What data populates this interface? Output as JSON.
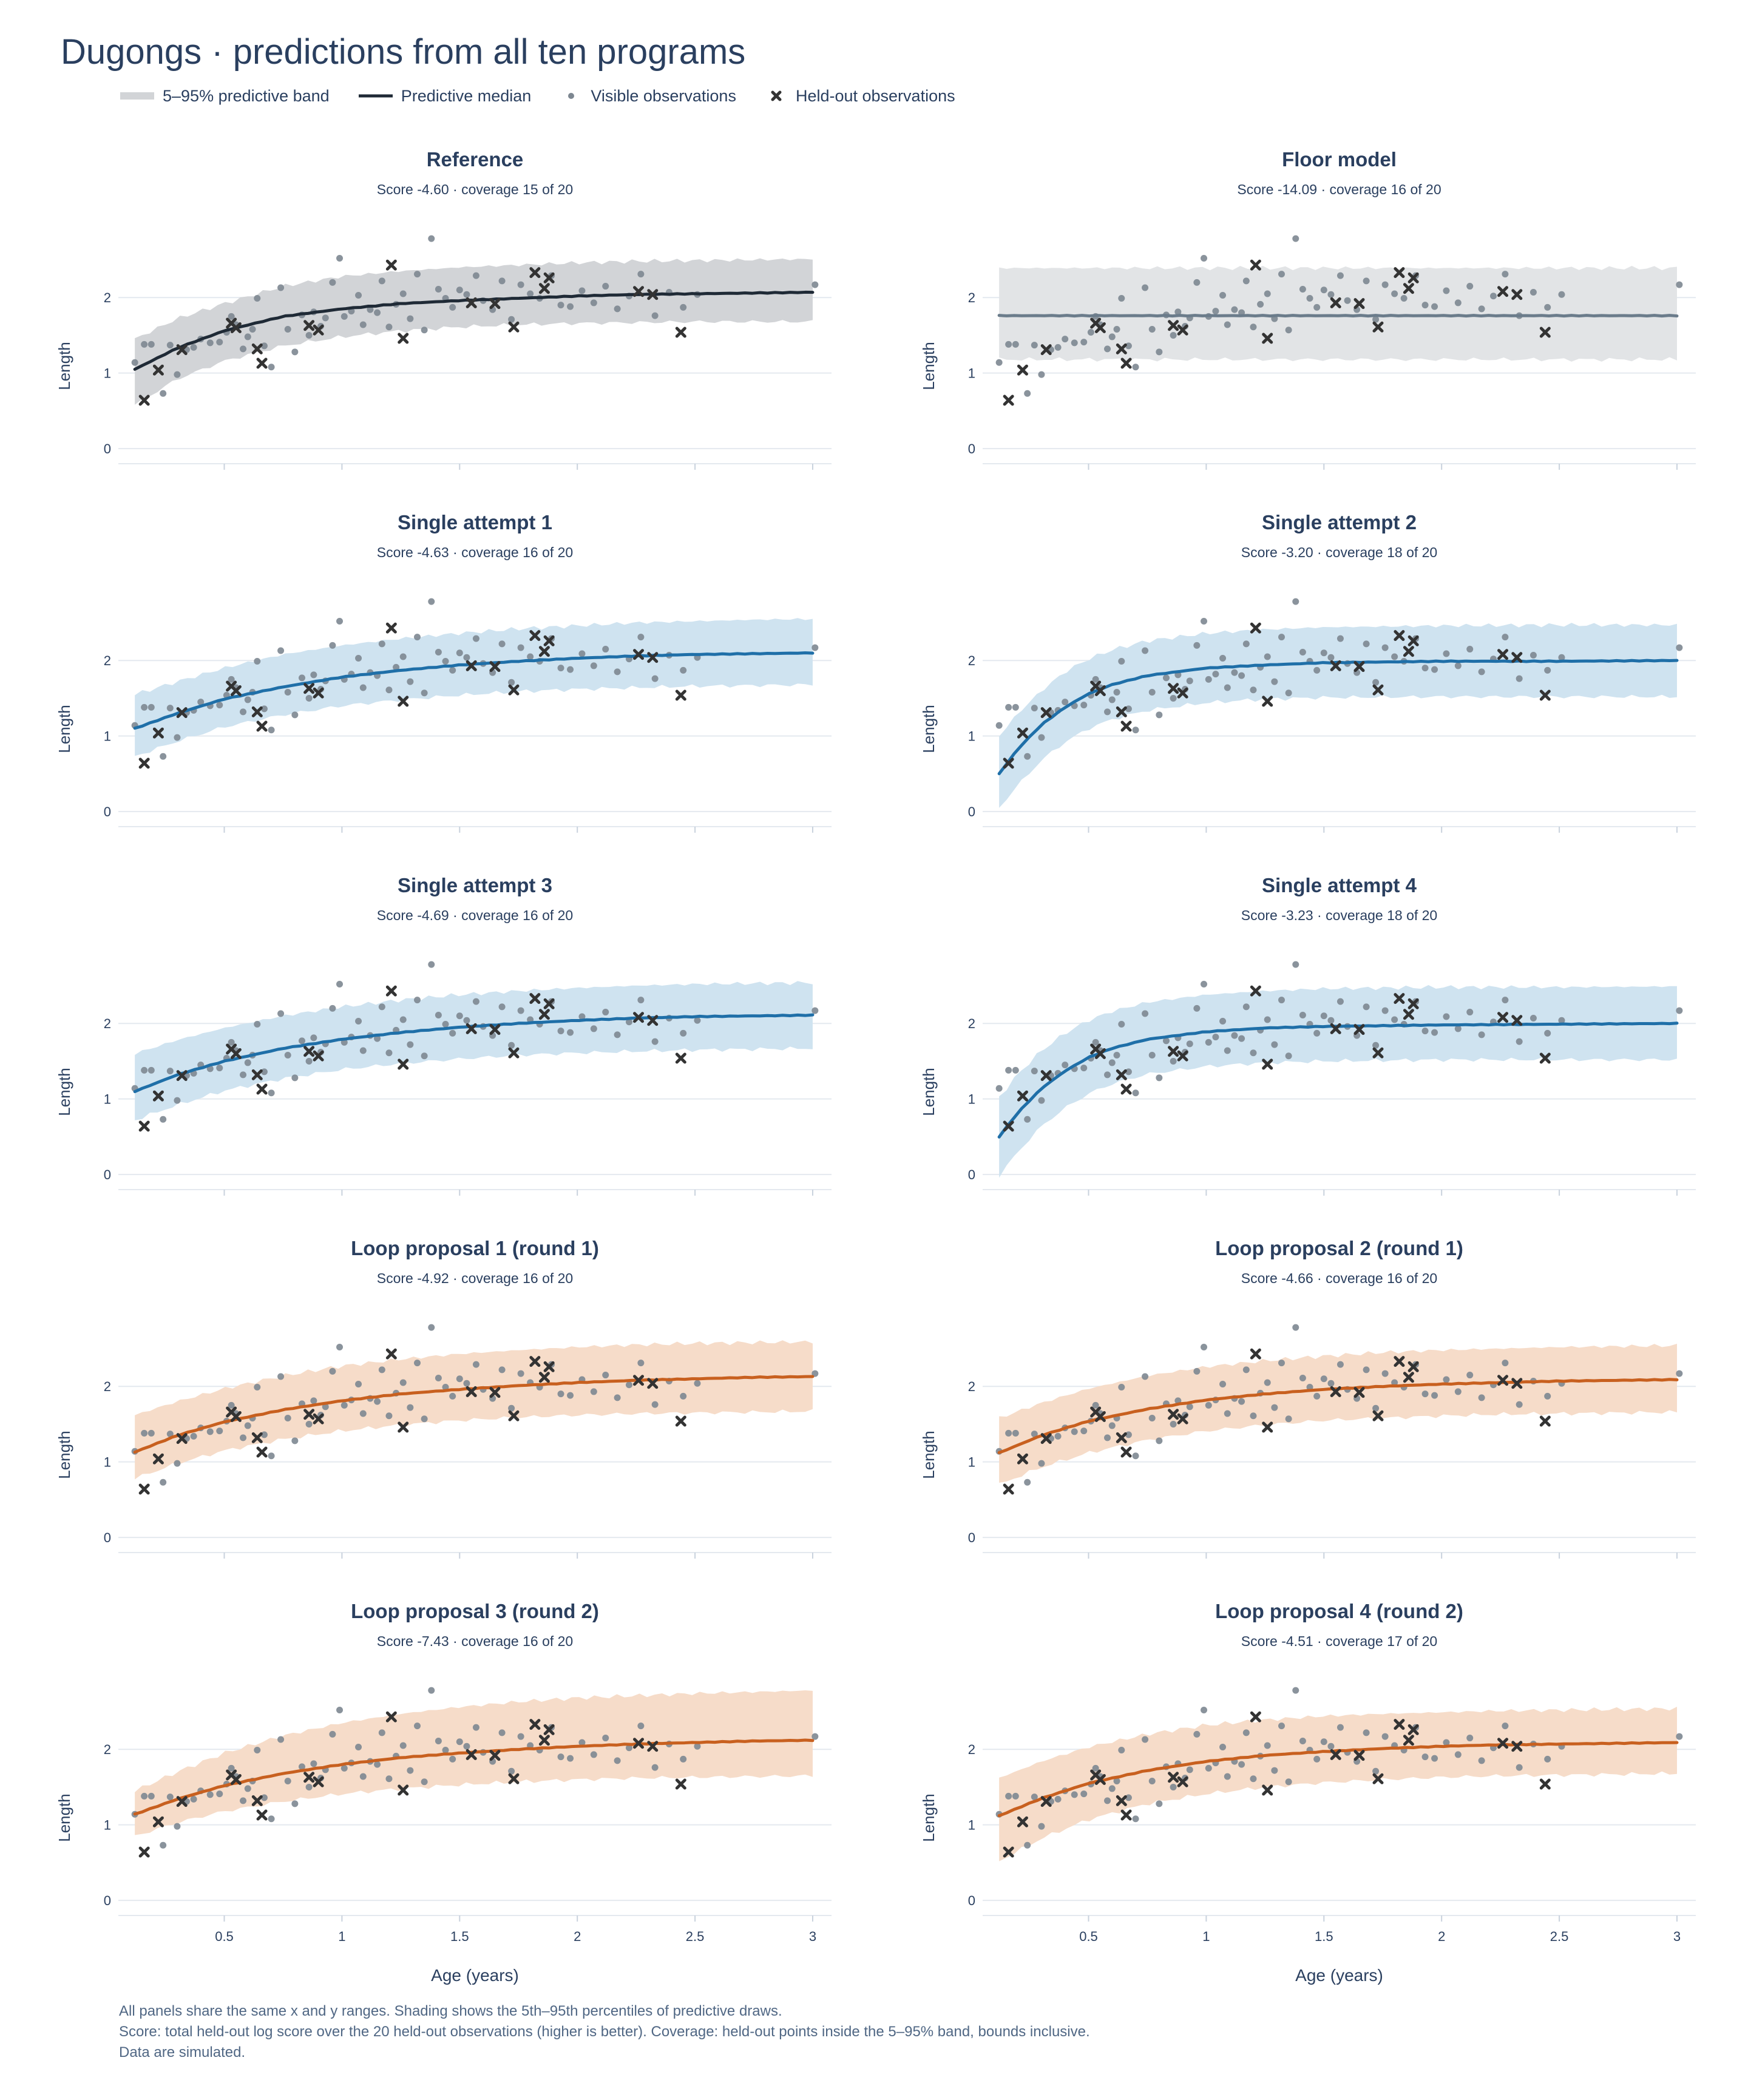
{
  "title": "Dugongs · predictions from all ten programs",
  "legend": {
    "band": "5–95% predictive band",
    "median": "Predictive median",
    "visible": "Visible observations",
    "heldout": "Held-out observations"
  },
  "footnotes": [
    "All panels share the same x and y ranges. Shading shows the 5th–95th percentiles of predictive draws.",
    "Score: total held-out log score over the 20 held-out observations (higher is better). Coverage: held-out points inside the 5–95% band, bounds inclusive.",
    "Data are simulated."
  ],
  "colors": {
    "reference": "#1f2a36",
    "reference_band": "#d2d4d7",
    "floor": "#6b7c8b",
    "floor_band": "#e2e4e6",
    "single": "#1f6fa8",
    "single_band": "#cfe3f0",
    "loop": "#c8601f",
    "loop_band": "#f6dcc9",
    "visible_points": "#7d8791",
    "heldout_points": "#333333",
    "grid": "#e4e9ef"
  },
  "chart_data": {
    "type": "line",
    "xlabel": "Age (years)",
    "ylabel": "Length",
    "xlim": [
      0.05,
      3.08
    ],
    "ylim": [
      -0.2,
      2.95
    ],
    "xticks": [
      0.5,
      1,
      1.5,
      2,
      2.5,
      3
    ],
    "xtick_labels": [
      "0.5",
      "1",
      "1.5",
      "2",
      "2.5",
      "3"
    ],
    "yticks": [
      0,
      1,
      2
    ],
    "ytick_labels": [
      "0",
      "1",
      "2"
    ],
    "visible_observations": {
      "x": [
        0.12,
        0.16,
        0.19,
        0.24,
        0.27,
        0.3,
        0.34,
        0.37,
        0.4,
        0.44,
        0.48,
        0.51,
        0.53,
        0.55,
        0.58,
        0.6,
        0.62,
        0.64,
        0.67,
        0.7,
        0.74,
        0.77,
        0.8,
        0.83,
        0.86,
        0.88,
        0.91,
        0.93,
        0.96,
        0.99,
        1.01,
        1.04,
        1.07,
        1.09,
        1.12,
        1.15,
        1.17,
        1.2,
        1.23,
        1.26,
        1.29,
        1.32,
        1.35,
        1.38,
        1.41,
        1.44,
        1.47,
        1.5,
        1.53,
        1.57,
        1.6,
        1.64,
        1.68,
        1.72,
        1.76,
        1.8,
        1.84,
        1.89,
        1.93,
        1.97,
        2.02,
        2.07,
        2.12,
        2.17,
        2.22,
        2.27,
        2.33,
        2.39,
        2.45,
        2.51,
        3.01
      ],
      "y": [
        1.14,
        1.38,
        1.38,
        0.73,
        1.37,
        0.98,
        1.31,
        1.34,
        1.45,
        1.4,
        1.41,
        1.54,
        1.75,
        1.64,
        1.32,
        1.48,
        1.58,
        1.99,
        1.36,
        1.08,
        2.13,
        1.58,
        1.28,
        1.77,
        1.5,
        1.81,
        1.62,
        1.73,
        2.2,
        2.52,
        1.75,
        1.82,
        2.03,
        1.64,
        1.84,
        1.8,
        2.22,
        1.61,
        1.91,
        2.05,
        1.72,
        2.31,
        1.57,
        2.78,
        2.11,
        1.99,
        1.87,
        2.1,
        2.04,
        2.29,
        1.96,
        1.84,
        2.22,
        1.71,
        2.17,
        2.05,
        1.99,
        2.29,
        1.9,
        1.88,
        2.09,
        1.93,
        2.15,
        1.85,
        2.02,
        2.31,
        1.76,
        2.07,
        1.87,
        2.04,
        2.17
      ]
    },
    "heldout_observations": {
      "x": [
        0.16,
        0.22,
        0.32,
        0.53,
        0.55,
        0.64,
        0.66,
        0.86,
        0.9,
        1.21,
        1.26,
        1.55,
        1.65,
        1.73,
        1.82,
        1.86,
        1.88,
        2.26,
        2.32,
        2.44
      ],
      "y": [
        0.64,
        1.04,
        1.31,
        1.66,
        1.6,
        1.32,
        1.13,
        1.63,
        1.57,
        2.43,
        1.46,
        1.93,
        1.92,
        1.61,
        2.33,
        2.12,
        2.26,
        2.08,
        2.04,
        1.54
      ]
    },
    "panels": [
      {
        "title": "Reference",
        "subtitle": "Score -4.60 · coverage 15 of 20",
        "style": "reference",
        "median": {
          "x": [
            0.12,
            0.3,
            0.5,
            0.75,
            1,
            1.25,
            1.5,
            1.75,
            2,
            2.25,
            2.5,
            2.75,
            3.0
          ],
          "y": [
            1.05,
            1.33,
            1.56,
            1.75,
            1.85,
            1.92,
            1.96,
            1.99,
            2.02,
            2.04,
            2.05,
            2.06,
            2.07
          ]
        },
        "band_lower": [
          0.58,
          0.92,
          1.16,
          1.36,
          1.48,
          1.56,
          1.61,
          1.64,
          1.66,
          1.67,
          1.68,
          1.68,
          1.68
        ],
        "band_upper": [
          1.45,
          1.72,
          1.92,
          2.15,
          2.28,
          2.35,
          2.4,
          2.43,
          2.46,
          2.48,
          2.49,
          2.5,
          2.51
        ]
      },
      {
        "title": "Floor model",
        "subtitle": "Score -14.09 · coverage 16 of 20",
        "style": "floor",
        "median": {
          "x": [
            0.12,
            0.5,
            1,
            1.5,
            2,
            2.5,
            3.0
          ],
          "y": [
            1.76,
            1.76,
            1.76,
            1.76,
            1.76,
            1.76,
            1.76
          ]
        },
        "band_lower": [
          1.18,
          1.18,
          1.18,
          1.18,
          1.18,
          1.18,
          1.18
        ],
        "band_upper": [
          2.39,
          2.39,
          2.39,
          2.39,
          2.39,
          2.39,
          2.39
        ]
      },
      {
        "title": "Single attempt 1",
        "subtitle": "Score -4.63 · coverage 16 of 20",
        "style": "single",
        "median": {
          "x": [
            0.12,
            0.3,
            0.5,
            0.75,
            1,
            1.25,
            1.5,
            1.75,
            2,
            2.25,
            2.5,
            2.75,
            3.0
          ],
          "y": [
            1.1,
            1.3,
            1.49,
            1.65,
            1.78,
            1.87,
            1.94,
            1.99,
            2.03,
            2.06,
            2.08,
            2.09,
            2.1
          ]
        },
        "band_lower": [
          0.73,
          0.93,
          1.12,
          1.28,
          1.4,
          1.48,
          1.54,
          1.59,
          1.62,
          1.64,
          1.66,
          1.67,
          1.68
        ],
        "band_upper": [
          1.55,
          1.72,
          1.9,
          2.08,
          2.2,
          2.29,
          2.36,
          2.42,
          2.46,
          2.5,
          2.52,
          2.54,
          2.55
        ]
      },
      {
        "title": "Single attempt 2",
        "subtitle": "Score -3.20 · coverage 18 of 20",
        "style": "single",
        "median": {
          "x": [
            0.12,
            0.2,
            0.3,
            0.4,
            0.5,
            0.6,
            0.75,
            1,
            1.25,
            1.5,
            2,
            2.5,
            3.0
          ],
          "y": [
            0.5,
            0.83,
            1.15,
            1.38,
            1.56,
            1.68,
            1.8,
            1.9,
            1.94,
            1.97,
            1.99,
            1.99,
            2.0
          ]
        },
        "band_lower": [
          0.05,
          0.35,
          0.68,
          0.92,
          1.1,
          1.22,
          1.34,
          1.44,
          1.49,
          1.51,
          1.52,
          1.52,
          1.52
        ],
        "band_upper": [
          1.0,
          1.3,
          1.6,
          1.85,
          2.02,
          2.14,
          2.26,
          2.36,
          2.41,
          2.44,
          2.46,
          2.47,
          2.47
        ]
      },
      {
        "title": "Single attempt 3",
        "subtitle": "Score -4.69 · coverage 16 of 20",
        "style": "single",
        "median": {
          "x": [
            0.12,
            0.3,
            0.5,
            0.75,
            1,
            1.25,
            1.5,
            1.75,
            2,
            2.25,
            2.5,
            2.75,
            3.0
          ],
          "y": [
            1.1,
            1.32,
            1.5,
            1.67,
            1.79,
            1.88,
            1.95,
            2.0,
            2.04,
            2.07,
            2.09,
            2.1,
            2.11
          ]
        },
        "band_lower": [
          0.72,
          0.92,
          1.11,
          1.27,
          1.39,
          1.47,
          1.53,
          1.58,
          1.61,
          1.63,
          1.65,
          1.66,
          1.67
        ],
        "band_upper": [
          1.6,
          1.78,
          1.94,
          2.1,
          2.22,
          2.31,
          2.38,
          2.43,
          2.47,
          2.5,
          2.52,
          2.53,
          2.54
        ]
      },
      {
        "title": "Single attempt 4",
        "subtitle": "Score -3.23 · coverage 18 of 20",
        "style": "single",
        "median": {
          "x": [
            0.12,
            0.2,
            0.3,
            0.4,
            0.5,
            0.6,
            0.75,
            1,
            1.25,
            1.5,
            2,
            2.5,
            3.0
          ],
          "y": [
            0.5,
            0.82,
            1.14,
            1.37,
            1.55,
            1.67,
            1.79,
            1.89,
            1.94,
            1.96,
            1.98,
            1.99,
            2.0
          ]
        },
        "band_lower": [
          -0.02,
          0.3,
          0.64,
          0.88,
          1.07,
          1.2,
          1.33,
          1.43,
          1.48,
          1.5,
          1.52,
          1.52,
          1.52
        ],
        "band_upper": [
          1.02,
          1.33,
          1.64,
          1.87,
          2.04,
          2.16,
          2.28,
          2.38,
          2.43,
          2.46,
          2.48,
          2.48,
          2.49
        ]
      },
      {
        "title": "Loop proposal 1 (round 1)",
        "subtitle": "Score -4.92 · coverage 16 of 20",
        "style": "loop",
        "median": {
          "x": [
            0.12,
            0.3,
            0.5,
            0.75,
            1,
            1.25,
            1.5,
            1.75,
            2,
            2.25,
            2.5,
            2.75,
            3.0
          ],
          "y": [
            1.13,
            1.35,
            1.53,
            1.69,
            1.81,
            1.9,
            1.96,
            2.01,
            2.05,
            2.08,
            2.1,
            2.12,
            2.13
          ]
        },
        "band_lower": [
          0.78,
          0.98,
          1.15,
          1.3,
          1.41,
          1.49,
          1.55,
          1.59,
          1.62,
          1.64,
          1.65,
          1.66,
          1.67
        ],
        "band_upper": [
          1.62,
          1.8,
          1.97,
          2.14,
          2.27,
          2.36,
          2.43,
          2.48,
          2.52,
          2.55,
          2.57,
          2.58,
          2.59
        ]
      },
      {
        "title": "Loop proposal 2 (round 1)",
        "subtitle": "Score -4.66 · coverage 16 of 20",
        "style": "loop",
        "median": {
          "x": [
            0.12,
            0.3,
            0.5,
            0.75,
            1,
            1.25,
            1.5,
            1.75,
            2,
            2.25,
            2.5,
            2.75,
            3.0
          ],
          "y": [
            1.12,
            1.35,
            1.54,
            1.7,
            1.82,
            1.9,
            1.96,
            2.0,
            2.03,
            2.05,
            2.07,
            2.08,
            2.09
          ]
        },
        "band_lower": [
          0.7,
          0.93,
          1.12,
          1.29,
          1.41,
          1.49,
          1.55,
          1.58,
          1.61,
          1.63,
          1.64,
          1.65,
          1.66
        ],
        "band_upper": [
          1.58,
          1.78,
          1.97,
          2.14,
          2.26,
          2.34,
          2.4,
          2.45,
          2.48,
          2.5,
          2.52,
          2.53,
          2.54
        ]
      },
      {
        "title": "Loop proposal 3 (round 2)",
        "subtitle": "Score -7.43 · coverage 16 of 20",
        "style": "loop",
        "median": {
          "x": [
            0.12,
            0.3,
            0.5,
            0.75,
            1,
            1.25,
            1.5,
            1.75,
            2,
            2.25,
            2.5,
            2.75,
            3.0
          ],
          "y": [
            1.14,
            1.34,
            1.52,
            1.68,
            1.8,
            1.89,
            1.95,
            2.0,
            2.04,
            2.07,
            2.09,
            2.11,
            2.12
          ]
        },
        "band_lower": [
          0.85,
          1.03,
          1.18,
          1.31,
          1.41,
          1.48,
          1.53,
          1.57,
          1.6,
          1.62,
          1.63,
          1.64,
          1.65
        ],
        "band_upper": [
          1.45,
          1.7,
          1.95,
          2.18,
          2.35,
          2.47,
          2.56,
          2.63,
          2.68,
          2.71,
          2.74,
          2.76,
          2.78
        ]
      },
      {
        "title": "Loop proposal 4 (round 2)",
        "subtitle": "Score -4.51 · coverage 17 of 20",
        "style": "loop",
        "median": {
          "x": [
            0.12,
            0.3,
            0.5,
            0.75,
            1,
            1.25,
            1.5,
            1.75,
            2,
            2.25,
            2.5,
            2.75,
            3.0
          ],
          "y": [
            1.12,
            1.35,
            1.55,
            1.72,
            1.84,
            1.92,
            1.97,
            2.01,
            2.04,
            2.06,
            2.07,
            2.08,
            2.09
          ]
        },
        "band_lower": [
          0.52,
          0.82,
          1.07,
          1.28,
          1.41,
          1.5,
          1.56,
          1.6,
          1.63,
          1.65,
          1.66,
          1.67,
          1.68
        ],
        "band_upper": [
          1.62,
          1.84,
          2.03,
          2.2,
          2.32,
          2.39,
          2.44,
          2.47,
          2.49,
          2.51,
          2.52,
          2.53,
          2.54
        ]
      }
    ]
  }
}
